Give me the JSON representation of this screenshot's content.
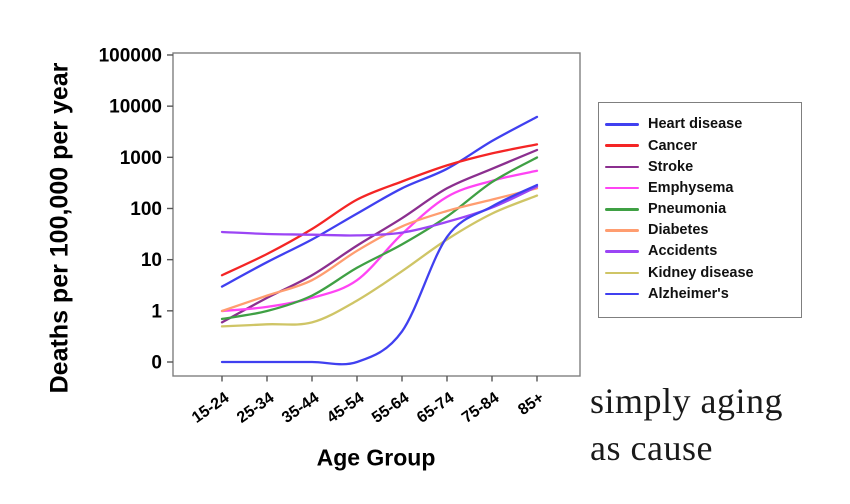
{
  "annotation": {
    "line1": "simply aging",
    "line2": "as cause"
  },
  "chart_data": {
    "type": "line",
    "title": "",
    "xlabel": "Age Group",
    "ylabel": "Deaths per 100,000 per year",
    "categories": [
      "15-24",
      "25-34",
      "35-44",
      "45-54",
      "55-64",
      "65-74",
      "75-84",
      "85+"
    ],
    "y_ticks": [
      0,
      1,
      10,
      100,
      1000,
      10000,
      100000
    ],
    "y_scale": "log",
    "y_note": "0 tick rendered one decade below 1",
    "grid": false,
    "legend_position": "right",
    "axis_color": "#7f7f7f",
    "tick_label_color": "#000000",
    "series": [
      {
        "name": "Heart disease",
        "color": "#4040f0",
        "values": [
          3,
          9,
          25,
          80,
          250,
          600,
          2100,
          6200
        ]
      },
      {
        "name": "Cancer",
        "color": "#f42525",
        "values": [
          5,
          13,
          40,
          150,
          340,
          700,
          1200,
          1800
        ]
      },
      {
        "name": "Stroke",
        "color": "#8b2f8f",
        "values": [
          0.6,
          1.8,
          5,
          19,
          65,
          250,
          600,
          1400
        ]
      },
      {
        "name": "Emphysema",
        "color": "#ff44f4",
        "values": [
          1,
          1.2,
          1.8,
          4,
          32,
          170,
          350,
          550
        ]
      },
      {
        "name": "Pneumonia",
        "color": "#3fa044",
        "values": [
          0.7,
          1,
          2,
          7,
          20,
          70,
          330,
          1000
        ]
      },
      {
        "name": "Diabetes",
        "color": "#ff9d70",
        "values": [
          1,
          2,
          4,
          15,
          45,
          90,
          150,
          250
        ]
      },
      {
        "name": "Accidents",
        "color": "#9b45f5",
        "values": [
          35,
          32,
          31,
          30,
          34,
          55,
          105,
          270
        ]
      },
      {
        "name": "Kidney disease",
        "color": "#cfc566",
        "values": [
          0.5,
          0.55,
          0.6,
          1.6,
          6,
          25,
          80,
          180
        ]
      },
      {
        "name": "Alzheimer's",
        "color": "#4040f0",
        "values": [
          0,
          0,
          0,
          0,
          0.4,
          28,
          110,
          290
        ]
      }
    ]
  }
}
